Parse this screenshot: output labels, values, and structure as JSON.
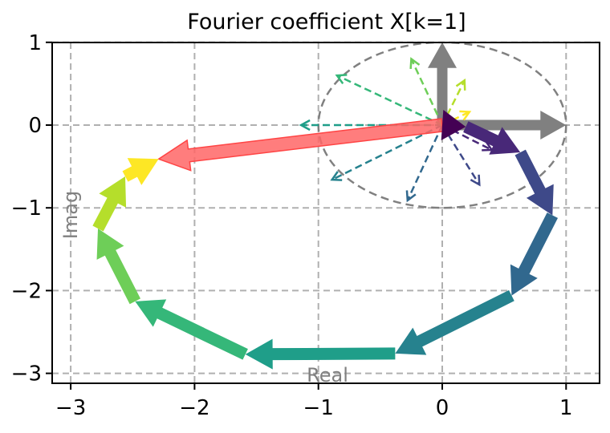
{
  "chart_data": {
    "type": "line",
    "title": "Fourier coefficient X[k=1]",
    "xlabel": "Real",
    "ylabel": "Imag",
    "xlim": [
      -3.15,
      1.27
    ],
    "ylim": [
      -3.12,
      1.0
    ],
    "xticks": [
      -3,
      -2,
      -1,
      0,
      1
    ],
    "yticks": [
      1,
      0,
      -1,
      -2,
      -3
    ],
    "xtick_labels": [
      "−3",
      "−2",
      "−1",
      "0",
      "1"
    ],
    "ytick_labels": [
      "1",
      "0",
      "−1",
      "−2",
      "−3"
    ],
    "grid": true,
    "unit_circle": {
      "center": [
        0,
        0
      ],
      "radius": 1,
      "style": "dashed",
      "color": "#808080"
    },
    "axis_arrows": [
      {
        "from": [
          0,
          0
        ],
        "to": [
          1,
          0
        ],
        "color": "#808080"
      },
      {
        "from": [
          0,
          0
        ],
        "to": [
          0,
          1
        ],
        "color": "#808080"
      }
    ],
    "cumulative_path": [
      {
        "from": [
          0.0,
          0.0
        ],
        "to": [
          0.19,
          -0.02
        ],
        "color": "#440154"
      },
      {
        "from": [
          0.19,
          -0.02
        ],
        "to": [
          0.63,
          -0.33
        ],
        "color": "#482878"
      },
      {
        "from": [
          0.63,
          -0.33
        ],
        "to": [
          0.89,
          -1.09
        ],
        "color": "#3e4989"
      },
      {
        "from": [
          0.89,
          -1.09
        ],
        "to": [
          0.56,
          -2.06
        ],
        "color": "#31688e"
      },
      {
        "from": [
          0.56,
          -2.06
        ],
        "to": [
          -0.38,
          -2.76
        ],
        "color": "#26828e"
      },
      {
        "from": [
          -0.38,
          -2.76
        ],
        "to": [
          -1.59,
          -2.77
        ],
        "color": "#1f9e89"
      },
      {
        "from": [
          -1.59,
          -2.77
        ],
        "to": [
          -2.48,
          -2.13
        ],
        "color": "#35b779"
      },
      {
        "from": [
          -2.48,
          -2.13
        ],
        "to": [
          -2.78,
          -1.25
        ],
        "color": "#6ece58"
      },
      {
        "from": [
          -2.78,
          -1.25
        ],
        "to": [
          -2.56,
          -0.62
        ],
        "color": "#b5de2b"
      },
      {
        "from": [
          -2.56,
          -0.62
        ],
        "to": [
          -2.29,
          -0.41
        ],
        "color": "#fde725"
      }
    ],
    "sum_arrow": {
      "from": [
        0,
        0
      ],
      "to": [
        -2.29,
        -0.41
      ],
      "color": "#ff6666",
      "label": "X[k=1]"
    },
    "term_vectors_dashed": [
      {
        "to": [
          0.4,
          -0.3
        ],
        "color": "#482878"
      },
      {
        "to": [
          0.3,
          -0.72
        ],
        "color": "#3e4989"
      },
      {
        "to": [
          -0.28,
          -0.91
        ],
        "color": "#31688e"
      },
      {
        "to": [
          -0.89,
          -0.66
        ],
        "color": "#26828e"
      },
      {
        "to": [
          -1.14,
          0.0
        ],
        "color": "#1f9e89"
      },
      {
        "to": [
          -0.85,
          0.6
        ],
        "color": "#35b779"
      },
      {
        "to": [
          -0.25,
          0.8
        ],
        "color": "#6ece58"
      },
      {
        "to": [
          0.18,
          0.54
        ],
        "color": "#b5de2b"
      },
      {
        "to": [
          0.22,
          0.16
        ],
        "color": "#fde725"
      }
    ]
  }
}
